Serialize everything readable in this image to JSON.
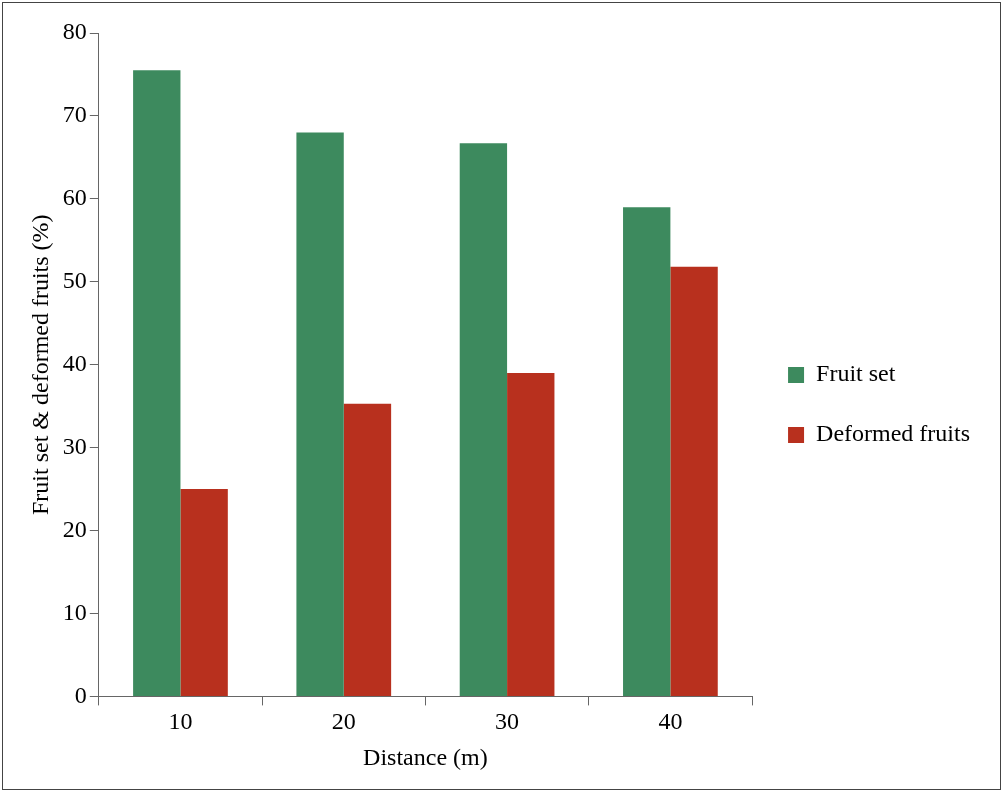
{
  "chart_data": {
    "type": "bar",
    "xlabel": "Distance (m)",
    "ylabel": "Fruit set & deformed fruits (%)",
    "categories": [
      "10",
      "20",
      "30",
      "40"
    ],
    "series": [
      {
        "name": "Fruit set",
        "color": "#3d8a5e",
        "values": [
          75.5,
          68,
          66.7,
          59
        ]
      },
      {
        "name": "Deformed fruits",
        "color": "#b8301e",
        "values": [
          25,
          35.3,
          39,
          51.8
        ]
      }
    ],
    "ylim": [
      0,
      80
    ],
    "yticks": [
      0,
      10,
      20,
      30,
      40,
      50,
      60,
      70,
      80
    ],
    "grid": false,
    "legend": "right"
  }
}
